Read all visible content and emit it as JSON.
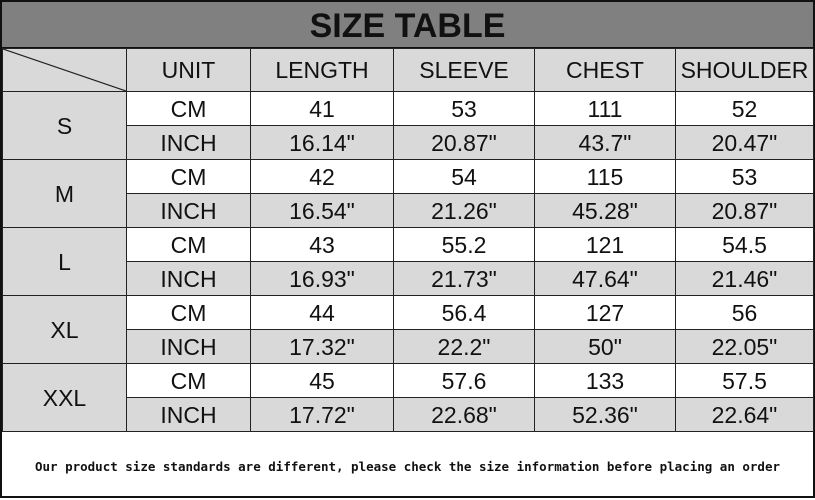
{
  "title": "SIZE TABLE",
  "headers": [
    "UNIT",
    "LENGTH",
    "SLEEVE",
    "CHEST",
    "SHOULDER"
  ],
  "rows": [
    {
      "size": "S",
      "cm": [
        "CM",
        "41",
        "53",
        "111",
        "52"
      ],
      "inch": [
        "INCH",
        "16.14\"",
        "20.87\"",
        "43.7\"",
        "20.47\""
      ]
    },
    {
      "size": "M",
      "cm": [
        "CM",
        "42",
        "54",
        "115",
        "53"
      ],
      "inch": [
        "INCH",
        "16.54\"",
        "21.26\"",
        "45.28\"",
        "20.87\""
      ]
    },
    {
      "size": "L",
      "cm": [
        "CM",
        "43",
        "55.2",
        "121",
        "54.5"
      ],
      "inch": [
        "INCH",
        "16.93\"",
        "21.73\"",
        "47.64\"",
        "21.46\""
      ]
    },
    {
      "size": "XL",
      "cm": [
        "CM",
        "44",
        "56.4",
        "127",
        "56"
      ],
      "inch": [
        "INCH",
        "17.32\"",
        "22.2\"",
        "50\"",
        "22.05\""
      ]
    },
    {
      "size": "XXL",
      "cm": [
        "CM",
        "45",
        "57.6",
        "133",
        "57.5"
      ],
      "inch": [
        "INCH",
        "17.72\"",
        "22.68\"",
        "52.36\"",
        "22.64\""
      ]
    }
  ],
  "footer": "Our product size standards are different, please check the size information before placing an order",
  "colors": {
    "title_bg": "#808080",
    "cell_gray": "#d9d9d9",
    "cell_white": "#ffffff"
  }
}
